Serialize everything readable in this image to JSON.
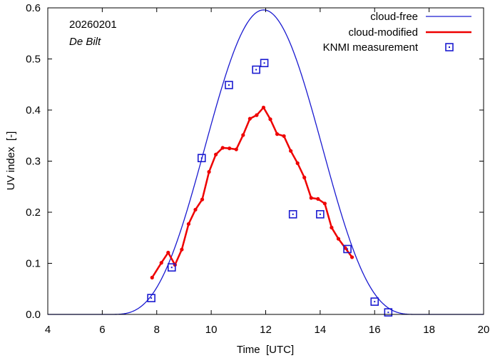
{
  "chart_data": {
    "type": "line",
    "annotations": {
      "date": "20260201",
      "location": "De Bilt"
    },
    "xlabel": "Time  [UTC]",
    "ylabel": "UV index  [-]",
    "xlim": [
      4,
      20
    ],
    "ylim": [
      0,
      0.6
    ],
    "x_ticks": [
      4,
      6,
      8,
      10,
      12,
      14,
      16,
      18,
      20
    ],
    "y_ticks": [
      0.0,
      0.1,
      0.2,
      0.3,
      0.4,
      0.5,
      0.6
    ],
    "x_tick_labels": [
      "4",
      "6",
      "8",
      "10",
      "12",
      "14",
      "16",
      "18",
      "20"
    ],
    "y_tick_labels": [
      "0.0",
      "0.1",
      "0.2",
      "0.3",
      "0.4",
      "0.5",
      "0.6"
    ],
    "legend_position": "top-right",
    "series": [
      {
        "name": "cloud-free",
        "style": "line",
        "color": "#1a1ad0",
        "peak_x": 11.92,
        "peak_y": 0.596,
        "start_x": 6.3,
        "end_x": 17.55
      },
      {
        "name": "cloud-modified",
        "style": "line-markers",
        "color": "#ee0000",
        "x": [
          7.83,
          8.17,
          8.42,
          8.67,
          8.92,
          9.17,
          9.42,
          9.67,
          9.92,
          10.17,
          10.42,
          10.67,
          10.92,
          11.17,
          11.42,
          11.67,
          11.92,
          12.17,
          12.42,
          12.67,
          12.92,
          13.17,
          13.42,
          13.67,
          13.92,
          14.17,
          14.42,
          14.67,
          14.92,
          15.17
        ],
        "y": [
          0.072,
          0.101,
          0.121,
          0.097,
          0.127,
          0.177,
          0.205,
          0.225,
          0.279,
          0.313,
          0.326,
          0.325,
          0.323,
          0.351,
          0.383,
          0.39,
          0.405,
          0.382,
          0.353,
          0.349,
          0.32,
          0.296,
          0.268,
          0.228,
          0.226,
          0.217,
          0.17,
          0.148,
          0.13,
          0.112
        ]
      },
      {
        "name": "KNMI measurement",
        "style": "markers",
        "color": "#1a1ad0",
        "x": [
          7.8,
          8.55,
          9.65,
          10.65,
          11.65,
          11.95,
          13.0,
          14.0,
          15.0,
          16.0,
          16.5
        ],
        "y": [
          0.032,
          0.092,
          0.306,
          0.449,
          0.479,
          0.492,
          0.196,
          0.196,
          0.128,
          0.025,
          0.004
        ]
      }
    ]
  }
}
